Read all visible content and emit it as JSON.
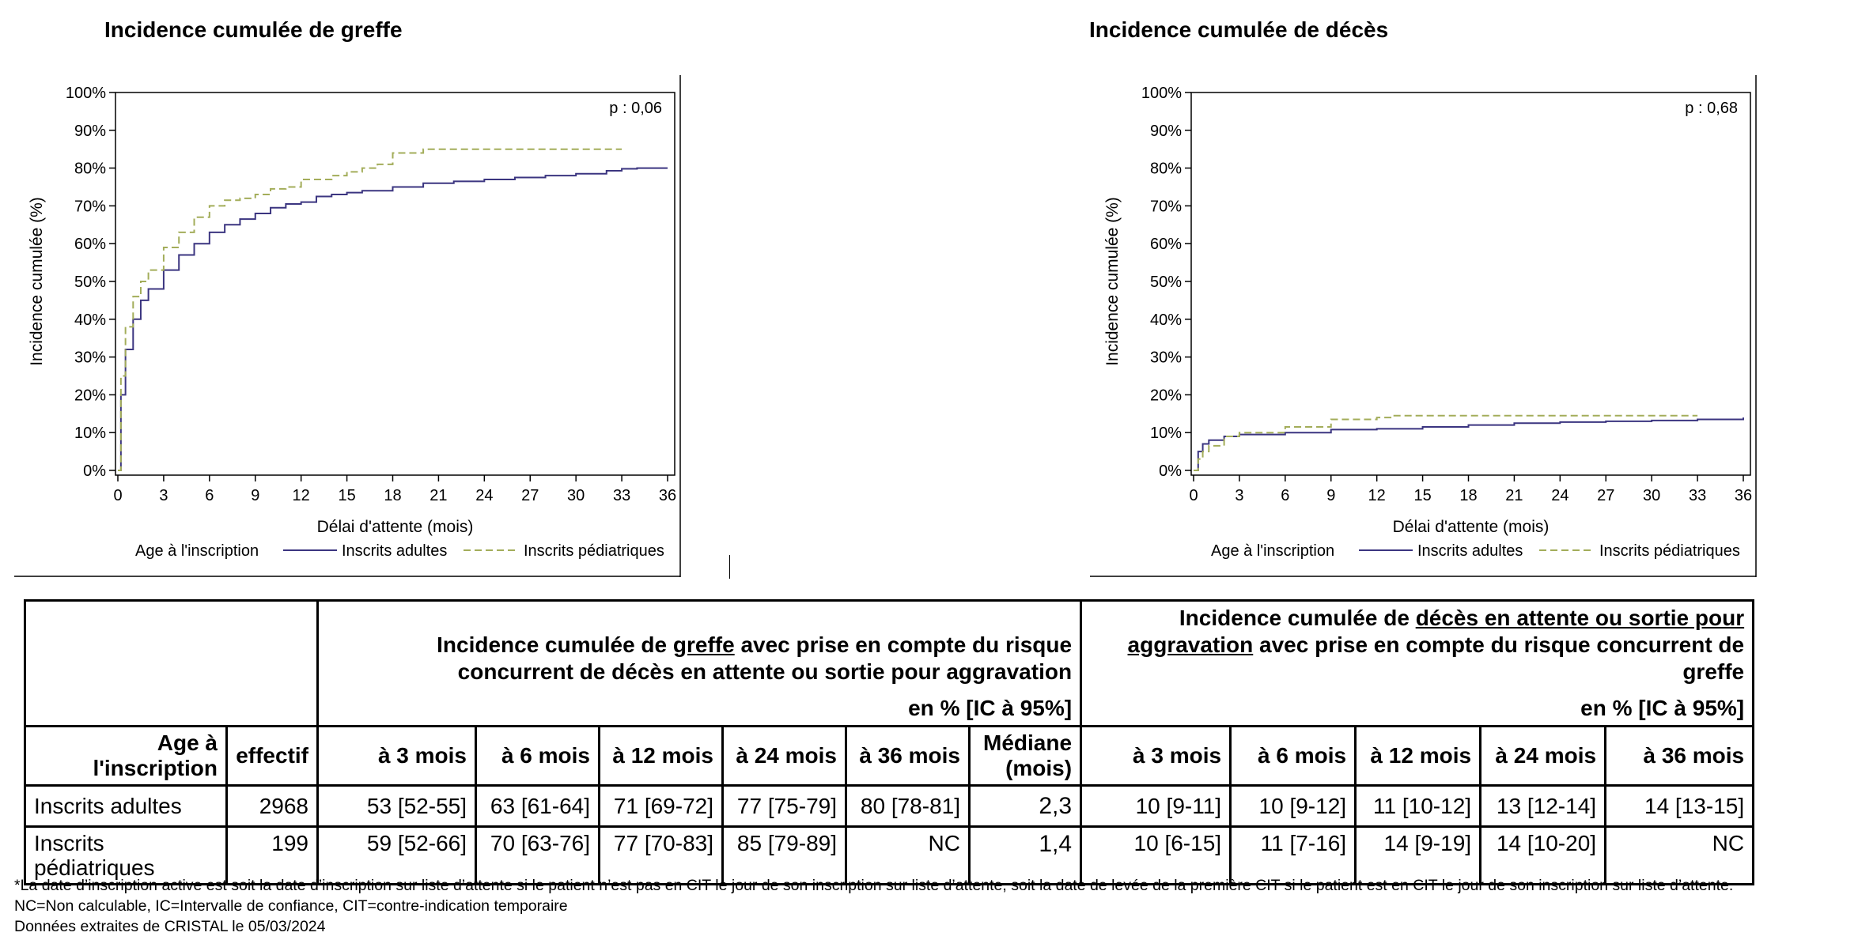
{
  "charts_meta": {
    "xlabel": "Délai d'attente (mois)",
    "ylabel": "Incidence cumulée (%)",
    "legend_title": "Age à l'inscription",
    "series_colors": {
      "Inscrits adultes": "#3b3580",
      "Inscrits pédiatriques": "#a3ad5a"
    }
  },
  "chart_data": [
    {
      "type": "line",
      "title": "Incidence cumulée de greffe",
      "annotation": "p : 0,06",
      "xlabel": "Délai d'attente (mois)",
      "ylabel": "Incidence cumulée (%)",
      "xlim": [
        0,
        36
      ],
      "ylim": [
        0,
        100
      ],
      "xticks": [
        0,
        3,
        6,
        9,
        12,
        15,
        18,
        21,
        24,
        27,
        30,
        33,
        36
      ],
      "yticks": [
        0,
        10,
        20,
        30,
        40,
        50,
        60,
        70,
        80,
        90,
        100
      ],
      "ytick_labels": [
        "0%",
        "10%",
        "20%",
        "30%",
        "40%",
        "50%",
        "60%",
        "70%",
        "80%",
        "90%",
        "100%"
      ],
      "legend_title": "Age à l'inscription",
      "series": [
        {
          "name": "Inscrits adultes",
          "style": "solid",
          "x": [
            0,
            0.2,
            0.5,
            1,
            1.5,
            2,
            3,
            4,
            5,
            6,
            7,
            8,
            9,
            10,
            11,
            12,
            13,
            14,
            15,
            16,
            18,
            20,
            22,
            24,
            26,
            28,
            30,
            32,
            33,
            34,
            36
          ],
          "y": [
            0,
            20,
            32,
            40,
            45,
            48,
            53,
            57,
            60,
            63,
            65,
            66.5,
            68,
            69.5,
            70.5,
            71,
            72.5,
            73,
            73.5,
            74,
            75,
            76,
            76.5,
            77,
            77.5,
            78,
            78.5,
            79.3,
            79.8,
            80,
            80
          ]
        },
        {
          "name": "Inscrits pédiatriques",
          "style": "dashed",
          "x": [
            0,
            0.2,
            0.5,
            1,
            1.5,
            2,
            3,
            4,
            5,
            6,
            7,
            8,
            9,
            10,
            11,
            12,
            14,
            15,
            16,
            17,
            18,
            20,
            24,
            30,
            33
          ],
          "y": [
            0,
            25,
            38,
            46,
            50,
            53,
            59,
            63,
            67,
            70,
            71.5,
            72,
            73,
            74.5,
            75,
            77,
            78,
            79,
            80,
            81,
            84,
            85,
            85,
            85,
            85
          ]
        }
      ]
    },
    {
      "type": "line",
      "title": "Incidence cumulée de décès",
      "annotation": "p : 0,68",
      "xlabel": "Délai d'attente (mois)",
      "ylabel": "Incidence cumulée (%)",
      "xlim": [
        0,
        36
      ],
      "ylim": [
        0,
        100
      ],
      "xticks": [
        0,
        3,
        6,
        9,
        12,
        15,
        18,
        21,
        24,
        27,
        30,
        33,
        36
      ],
      "yticks": [
        0,
        10,
        20,
        30,
        40,
        50,
        60,
        70,
        80,
        90,
        100
      ],
      "ytick_labels": [
        "0%",
        "10%",
        "20%",
        "30%",
        "40%",
        "50%",
        "60%",
        "70%",
        "80%",
        "90%",
        "100%"
      ],
      "legend_title": "Age à l'inscription",
      "series": [
        {
          "name": "Inscrits adultes",
          "style": "solid",
          "x": [
            0,
            0.3,
            0.6,
            1,
            2,
            3,
            6,
            9,
            12,
            15,
            18,
            21,
            24,
            27,
            30,
            33,
            36
          ],
          "y": [
            0,
            5,
            7,
            8,
            9,
            9.5,
            10,
            10.8,
            11,
            11.5,
            12,
            12.5,
            12.8,
            13,
            13.2,
            13.5,
            14
          ]
        },
        {
          "name": "Inscrits pédiatriques",
          "style": "dashed",
          "x": [
            0,
            0.3,
            0.6,
            1,
            2,
            3,
            6,
            9,
            12,
            13,
            15,
            18,
            24,
            33
          ],
          "y": [
            0,
            3,
            5,
            6.5,
            9,
            10,
            11.5,
            13.5,
            14,
            14.5,
            14.5,
            14.5,
            14.5,
            14.5
          ]
        }
      ]
    }
  ],
  "table": {
    "greffe_title_pre": "Incidence cumulée de ",
    "greffe_title_u": "greffe",
    "greffe_title_post": " avec prise en compte du risque concurrent de décès en attente ou sortie pour aggravation",
    "deces_title_pre": "Incidence cumulée de ",
    "deces_title_u": "décès en attente ou sortie pour aggravation",
    "deces_title_post": " avec prise en compte du risque concurrent de greffe",
    "unit": "en % [IC à 95%]",
    "headers": [
      "Age à l'inscription",
      "effectif",
      "à 3 mois",
      "à 6 mois",
      "à 12 mois",
      "à 24 mois",
      "à 36 mois",
      "Médiane (mois)",
      "à 3 mois",
      "à 6 mois",
      "à 12 mois",
      "à 24 mois",
      "à 36 mois"
    ],
    "rows": [
      [
        "Inscrits adultes",
        "2968",
        "53 [52-55]",
        "63 [61-64]",
        "71 [69-72]",
        "77 [75-79]",
        "80 [78-81]",
        "2,3",
        "10 [9-11]",
        "10 [9-12]",
        "11 [10-12]",
        "13 [12-14]",
        "14 [13-15]"
      ],
      [
        "Inscrits pédiatriques",
        "199",
        "59 [52-66]",
        "70 [63-76]",
        "77 [70-83]",
        "85 [79-89]",
        "NC",
        "1,4",
        "10 [6-15]",
        "11 [7-16]",
        "14 [9-19]",
        "14 [10-20]",
        "NC"
      ]
    ]
  },
  "notes": [
    "*La date d’inscription active est soit la date d’inscription sur liste d’attente si le patient n’est pas en CIT le jour de son inscription sur liste d’attente, soit la date de levée de la première CIT si le patient est en CIT le jour de son inscription sur liste d’attente.",
    "NC=Non calculable, IC=Intervalle de confiance, CIT=contre-indication temporaire",
    "Données extraites de CRISTAL le 05/03/2024"
  ]
}
